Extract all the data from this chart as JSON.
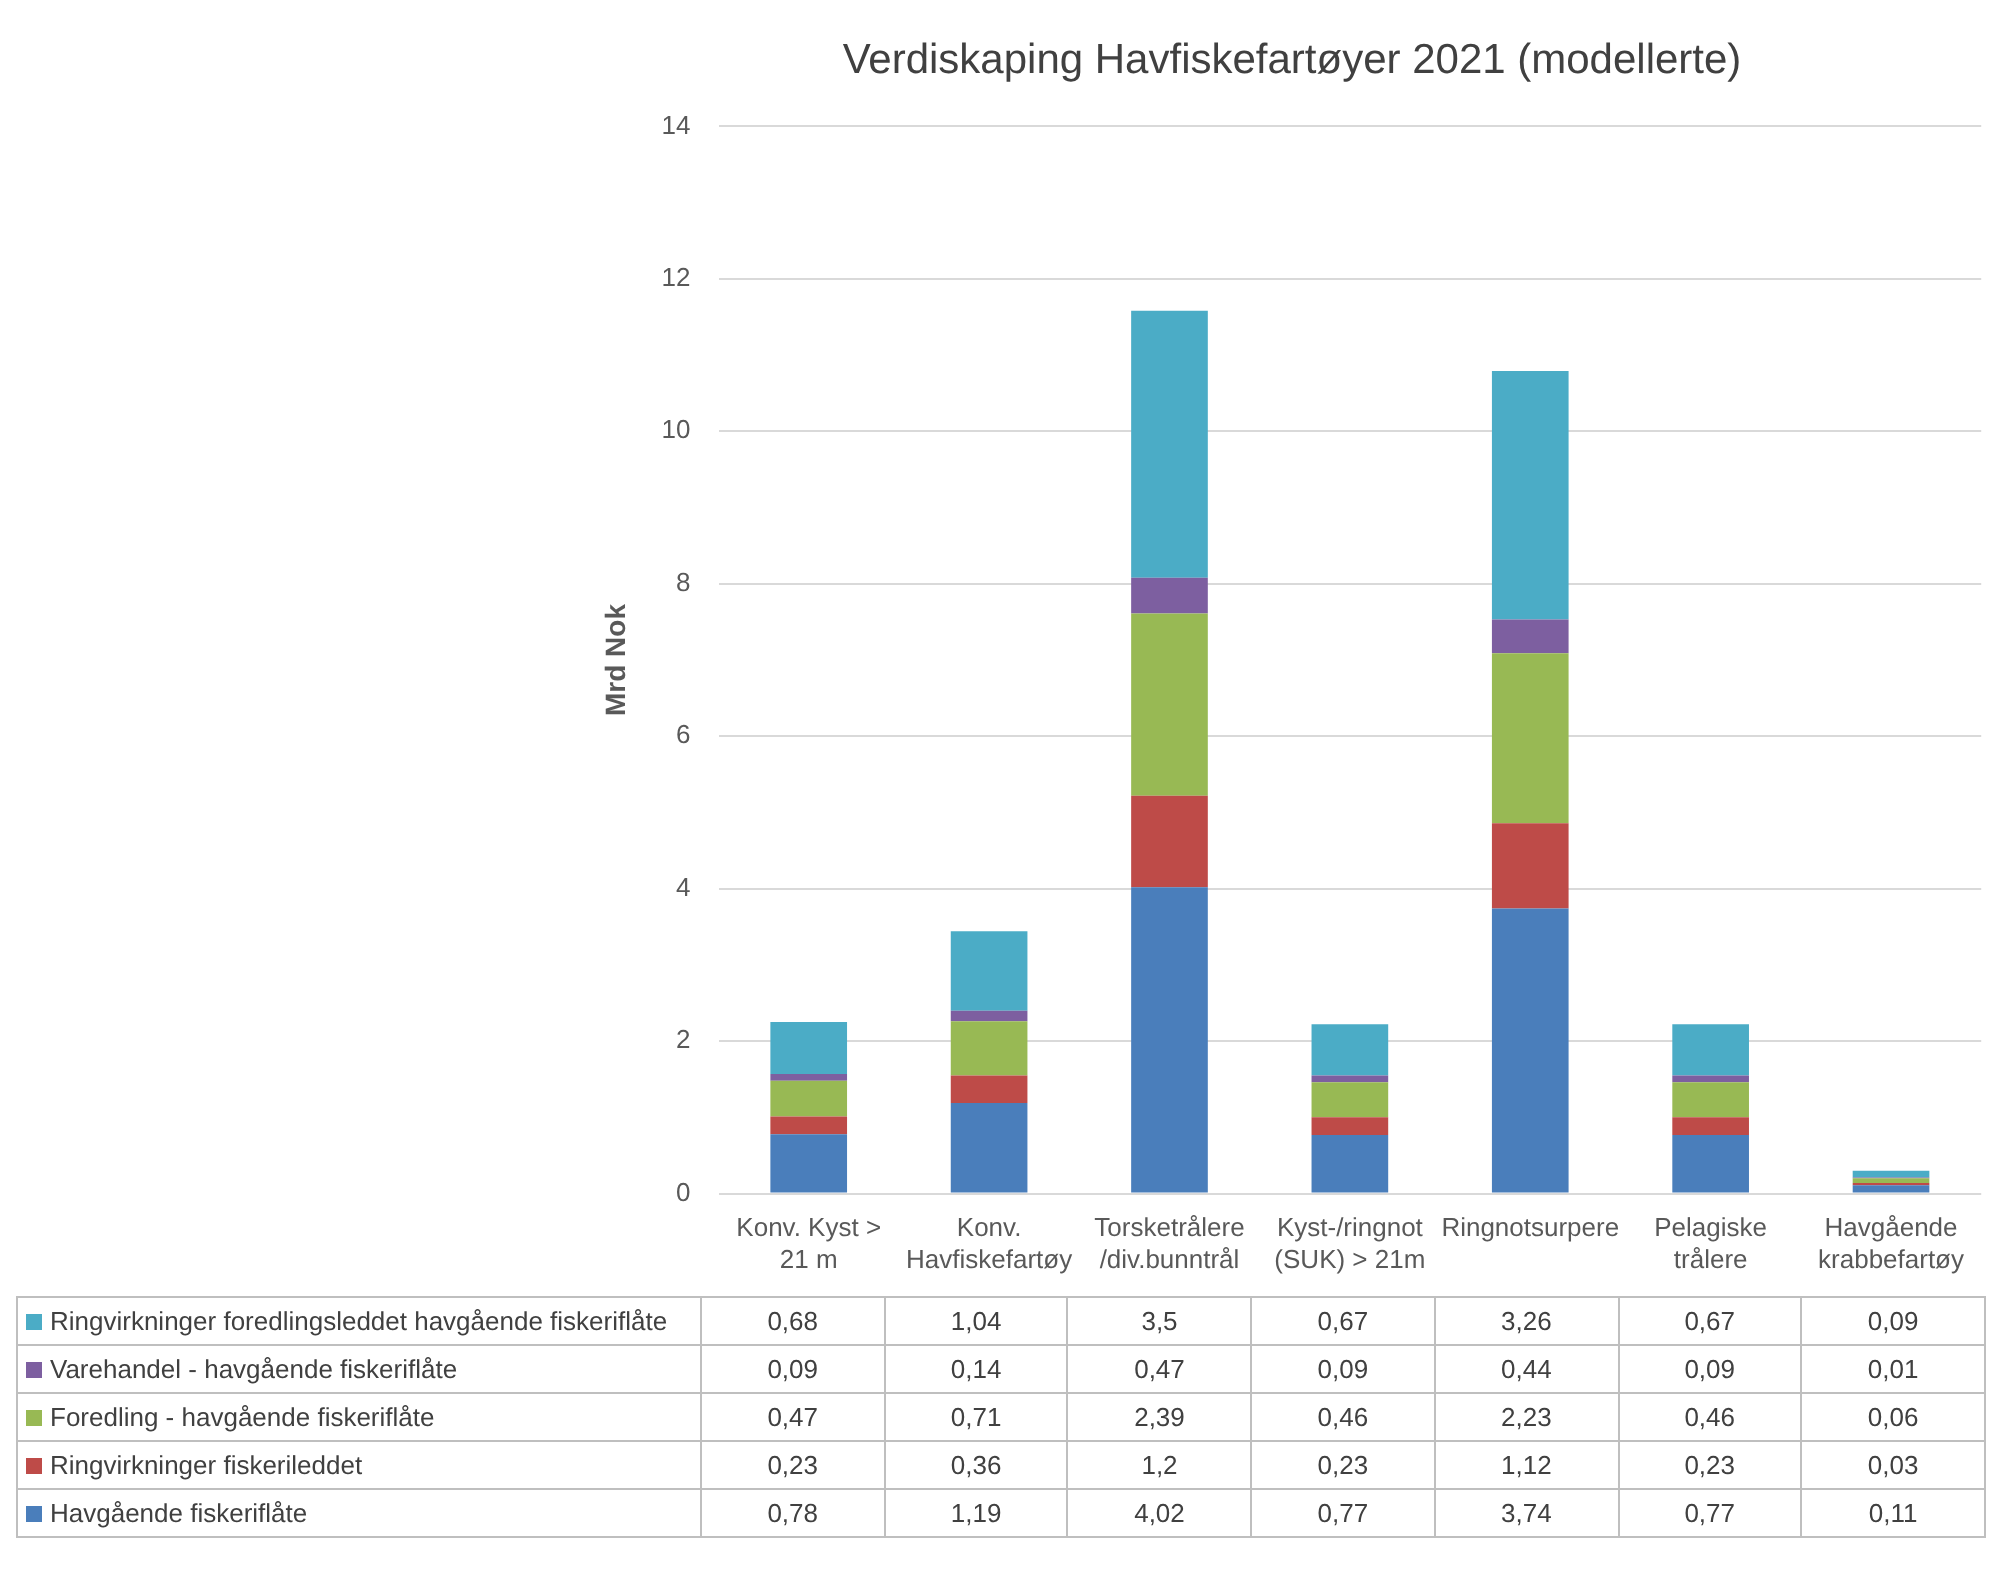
{
  "chart_data": {
    "type": "bar",
    "title": "Verdiskaping Havfiskefartøyer 2021 (modellerte)",
    "ylabel": "Mrd Nok",
    "categories": [
      "Konv. Kyst > 21 m",
      "Konv. Havfiskefartøy",
      "Torsketrålere /div.bunntrål",
      "Kyst-/ringnot (SUK) > 21m",
      "Ringnotsurpere",
      "Pelagiske trålere",
      "Havgående krabbefartøy"
    ],
    "stacked": true,
    "ylim": [
      0,
      14
    ],
    "yticks": [
      0,
      2,
      4,
      6,
      8,
      10,
      12,
      14
    ],
    "grid": "y",
    "legend": "bottom",
    "series": [
      {
        "name": "Havgående fiskeriflåte",
        "color": "#4a7ebb",
        "values": [
          0.78,
          1.19,
          4.02,
          0.77,
          3.74,
          0.77,
          0.11
        ],
        "value_labels": [
          "0,78",
          "1,19",
          "4,02",
          "0,77",
          "3,74",
          "0,77",
          "0,11"
        ]
      },
      {
        "name": "Ringvirkninger fiskerileddet",
        "color": "#be4b48",
        "values": [
          0.23,
          0.36,
          1.2,
          0.23,
          1.12,
          0.23,
          0.03
        ],
        "value_labels": [
          "0,23",
          "0,36",
          "1,2",
          "0,23",
          "1,12",
          "0,23",
          "0,03"
        ]
      },
      {
        "name": "Foredling - havgående fiskeriflåte",
        "color": "#98b954",
        "values": [
          0.47,
          0.71,
          2.39,
          0.46,
          2.23,
          0.46,
          0.06
        ],
        "value_labels": [
          "0,47",
          "0,71",
          "2,39",
          "0,46",
          "2,23",
          "0,46",
          "0,06"
        ]
      },
      {
        "name": "Varehandel - havgående fiskeriflåte",
        "color": "#7d5fa0",
        "values": [
          0.09,
          0.14,
          0.47,
          0.09,
          0.44,
          0.09,
          0.01
        ],
        "value_labels": [
          "0,09",
          "0,14",
          "0,47",
          "0,09",
          "0,44",
          "0,09",
          "0,01"
        ]
      },
      {
        "name": "Ringvirkninger foredlingsleddet havgående fiskeriflåte",
        "color": "#4bacc6",
        "values": [
          0.68,
          1.04,
          3.5,
          0.67,
          3.26,
          0.67,
          0.09
        ],
        "value_labels": [
          "0,68",
          "1,04",
          "3,5",
          "0,67",
          "3,26",
          "0,67",
          "0,09"
        ]
      }
    ]
  }
}
